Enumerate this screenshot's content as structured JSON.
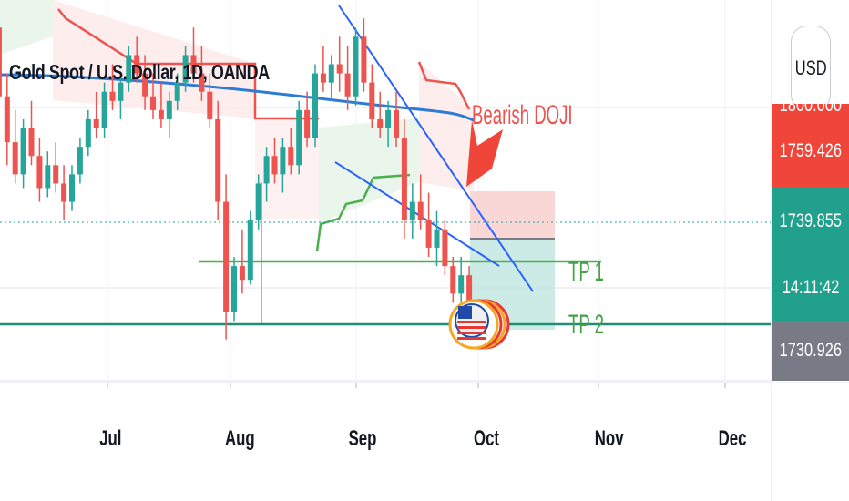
{
  "symbol_title": "Gold Spot / U.S. Dollar, 1D, OANDA",
  "currency": "USD",
  "price_labels": {
    "upper_cut": "1800.000",
    "bid": "1759.426",
    "last": "1739.855",
    "countdown": "14:11:42",
    "lower": "1730.926"
  },
  "colors": {
    "up": "#26a69a",
    "down": "#ef5350",
    "ma": "#2e7bd6",
    "trendline": "#2962ff",
    "tp_green": "#4caf50",
    "grid": "#e0e3eb",
    "axis_text": "#131722",
    "bid_box": "#f0463a",
    "last_box": "#22a08e",
    "lower_box": "#787b86"
  },
  "annotations": {
    "bearish_doji": "Bearish DOJI",
    "tp1": "TP 1",
    "tp2": "TP 2"
  },
  "chart_data": {
    "type": "candlestick",
    "title": "Gold Spot / U.S. Dollar, 1D, OANDA",
    "x_tick_labels": [
      "Jul",
      "Aug",
      "Sep",
      "Oct",
      "Nov",
      "Dec"
    ],
    "y_axis_labels": [
      "1759.426",
      "1739.855",
      "1730.926"
    ],
    "ylim": [
      1723,
      1806
    ],
    "series": [
      {
        "ohlc": [
          [
            1808,
            1812,
            1795,
            1800
          ],
          [
            1800,
            1804,
            1782,
            1785
          ],
          [
            1785,
            1790,
            1770,
            1775
          ],
          [
            1775,
            1782,
            1766,
            1768
          ],
          [
            1768,
            1780,
            1765,
            1778
          ],
          [
            1778,
            1784,
            1770,
            1772
          ],
          [
            1772,
            1776,
            1762,
            1765
          ],
          [
            1765,
            1773,
            1763,
            1770
          ],
          [
            1770,
            1775,
            1764,
            1766
          ],
          [
            1766,
            1770,
            1758,
            1762
          ],
          [
            1762,
            1770,
            1760,
            1768
          ],
          [
            1768,
            1776,
            1766,
            1774
          ],
          [
            1774,
            1782,
            1772,
            1780
          ],
          [
            1780,
            1786,
            1776,
            1778
          ],
          [
            1778,
            1788,
            1776,
            1786
          ],
          [
            1786,
            1792,
            1782,
            1784
          ],
          [
            1784,
            1790,
            1780,
            1788
          ],
          [
            1788,
            1796,
            1786,
            1794
          ],
          [
            1794,
            1798,
            1788,
            1790
          ],
          [
            1790,
            1794,
            1782,
            1785
          ],
          [
            1785,
            1790,
            1780,
            1782
          ],
          [
            1782,
            1788,
            1778,
            1780
          ],
          [
            1780,
            1786,
            1776,
            1784
          ],
          [
            1784,
            1790,
            1782,
            1788
          ],
          [
            1788,
            1796,
            1786,
            1794
          ],
          [
            1794,
            1800,
            1788,
            1790
          ],
          [
            1790,
            1796,
            1784,
            1786
          ],
          [
            1786,
            1790,
            1778,
            1780
          ],
          [
            1780,
            1784,
            1758,
            1762
          ],
          [
            1762,
            1768,
            1732,
            1738
          ],
          [
            1738,
            1750,
            1736,
            1748
          ],
          [
            1748,
            1756,
            1742,
            1745
          ],
          [
            1745,
            1760,
            1744,
            1758
          ],
          [
            1758,
            1768,
            1756,
            1766
          ],
          [
            1766,
            1774,
            1762,
            1772
          ],
          [
            1772,
            1776,
            1766,
            1768
          ],
          [
            1768,
            1776,
            1764,
            1774
          ],
          [
            1774,
            1778,
            1768,
            1770
          ],
          [
            1770,
            1784,
            1768,
            1782
          ],
          [
            1782,
            1786,
            1774,
            1776
          ],
          [
            1776,
            1792,
            1774,
            1790
          ],
          [
            1790,
            1796,
            1786,
            1788
          ],
          [
            1788,
            1794,
            1784,
            1792
          ],
          [
            1792,
            1798,
            1786,
            1790
          ],
          [
            1790,
            1796,
            1782,
            1785
          ],
          [
            1785,
            1800,
            1783,
            1798
          ],
          [
            1798,
            1802,
            1786,
            1788
          ],
          [
            1788,
            1792,
            1778,
            1780
          ],
          [
            1780,
            1786,
            1776,
            1778
          ],
          [
            1778,
            1784,
            1774,
            1782
          ],
          [
            1782,
            1786,
            1774,
            1776
          ],
          [
            1776,
            1780,
            1754,
            1758
          ],
          [
            1758,
            1766,
            1754,
            1762
          ],
          [
            1762,
            1768,
            1756,
            1758
          ],
          [
            1758,
            1764,
            1750,
            1752
          ],
          [
            1752,
            1760,
            1748,
            1756
          ],
          [
            1756,
            1758,
            1746,
            1748
          ],
          [
            1748,
            1750,
            1740,
            1742
          ],
          [
            1742,
            1750,
            1740,
            1746
          ],
          [
            1746,
            1748,
            1738,
            1740
          ]
        ]
      }
    ]
  }
}
